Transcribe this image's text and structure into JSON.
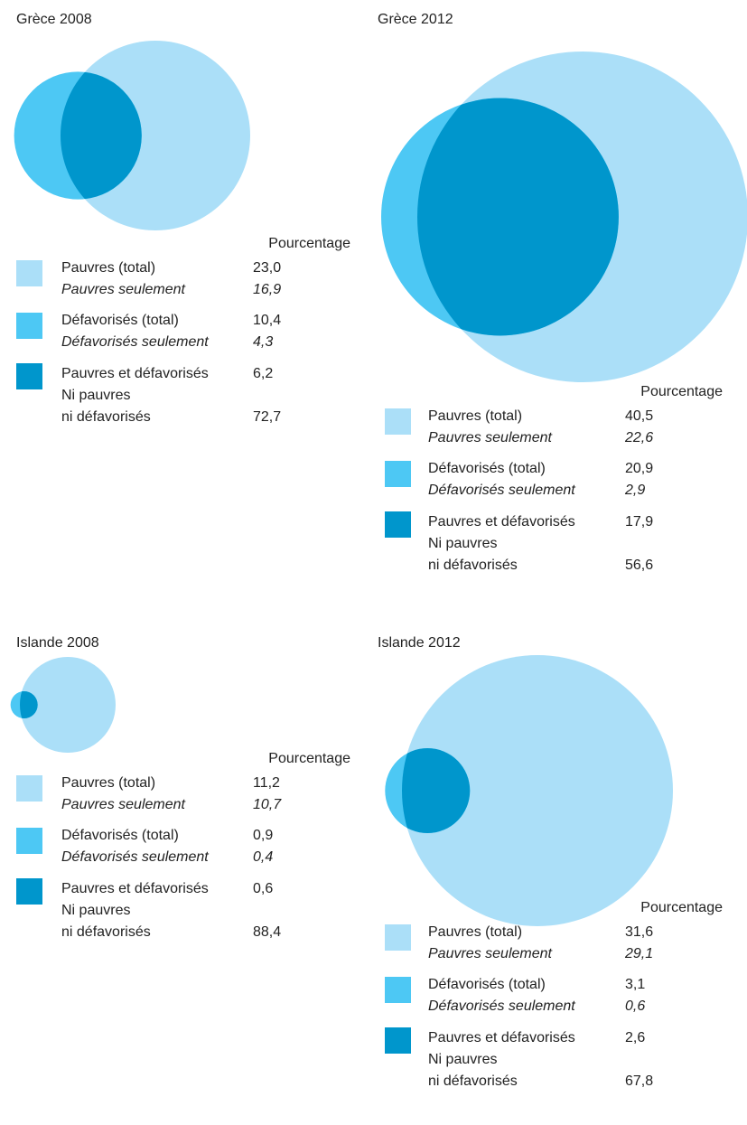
{
  "chart_data": [
    {
      "type": "venn",
      "title": "Grèce 2008",
      "value_heading": "Pourcentage",
      "categories": [
        "Pauvres (total)",
        "Pauvres seulement",
        "Défavorisés (total)",
        "Défavorisés seulement",
        "Pauvres et défavorisés",
        "Ni pauvres\nni défavorisés"
      ],
      "values": [
        23.0,
        16.9,
        10.4,
        4.3,
        6.2,
        72.7
      ],
      "value_labels": [
        "23,0",
        "16,9",
        "10,4",
        "4,3",
        "6,2",
        "72,7"
      ],
      "colors": [
        "#abdff8",
        "#4dc8f4",
        "#0096cc"
      ]
    },
    {
      "type": "venn",
      "title": "Grèce 2012",
      "value_heading": "Pourcentage",
      "categories": [
        "Pauvres (total)",
        "Pauvres seulement",
        "Défavorisés (total)",
        "Défavorisés seulement",
        "Pauvres et défavorisés",
        "Ni pauvres\nni défavorisés"
      ],
      "values": [
        40.5,
        22.6,
        20.9,
        2.9,
        17.9,
        56.6
      ],
      "value_labels": [
        "40,5",
        "22,6",
        "20,9",
        "2,9",
        "17,9",
        "56,6"
      ],
      "colors": [
        "#abdff8",
        "#4dc8f4",
        "#0096cc"
      ]
    },
    {
      "type": "venn",
      "title": "Islande 2008",
      "value_heading": "Pourcentage",
      "categories": [
        "Pauvres (total)",
        "Pauvres seulement",
        "Défavorisés (total)",
        "Défavorisés seulement",
        "Pauvres et défavorisés",
        "Ni pauvres\nni défavorisés"
      ],
      "values": [
        11.2,
        10.7,
        0.9,
        0.4,
        0.6,
        88.4
      ],
      "value_labels": [
        "11,2",
        "10,7",
        "0,9",
        "0,4",
        "0,6",
        "88,4"
      ],
      "colors": [
        "#abdff8",
        "#4dc8f4",
        "#0096cc"
      ]
    },
    {
      "type": "venn",
      "title": "Islande 2012",
      "value_heading": "Pourcentage",
      "categories": [
        "Pauvres (total)",
        "Pauvres seulement",
        "Défavorisés (total)",
        "Défavorisés seulement",
        "Pauvres et défavorisés",
        "Ni pauvres\nni défavorisés"
      ],
      "values": [
        31.6,
        29.1,
        3.1,
        0.6,
        2.6,
        67.8
      ],
      "value_labels": [
        "31,6",
        "29,1",
        "3,1",
        "0,6",
        "2,6",
        "67,8"
      ],
      "colors": [
        "#abdff8",
        "#4dc8f4",
        "#0096cc"
      ]
    }
  ]
}
